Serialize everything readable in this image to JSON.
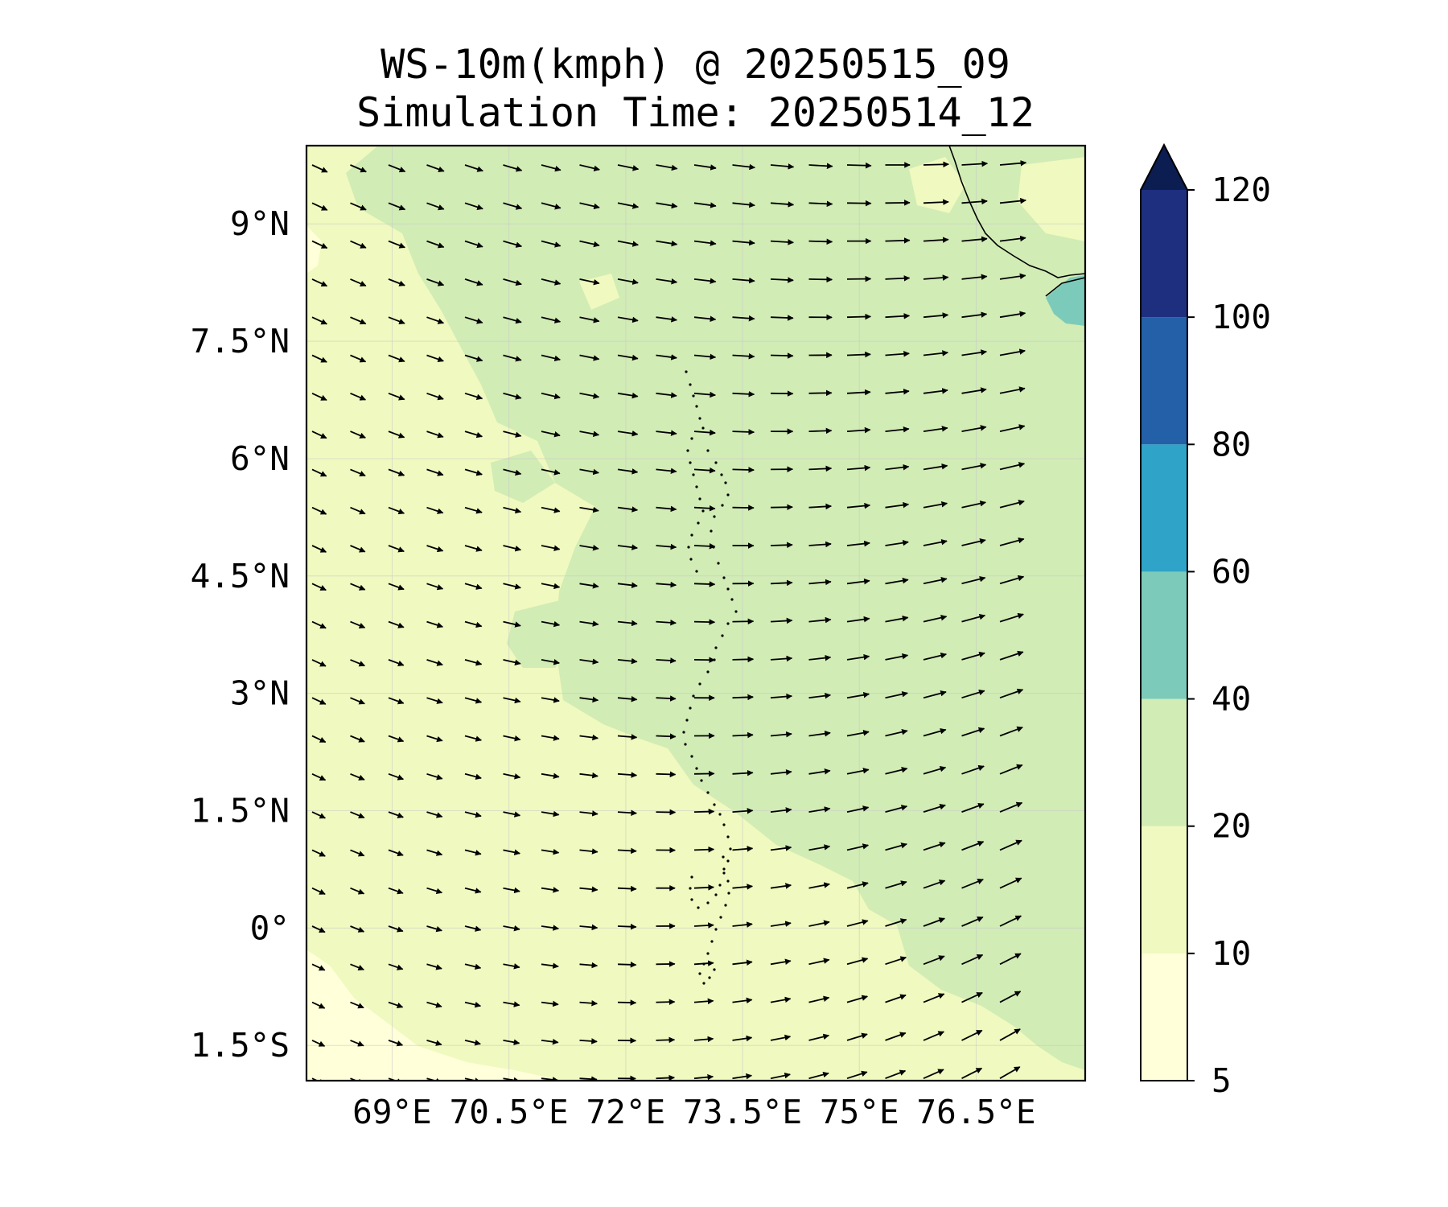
{
  "title": {
    "line1": "WS-10m(kmph) @ 20250515_09",
    "line2": "Simulation Time: 20250514_12"
  },
  "map": {
    "variable": "10 m wind speed",
    "units": "kmph",
    "lon_range": [
      67.9,
      77.9
    ],
    "lat_range": [
      -1.95,
      10.0
    ],
    "lat_ticks": [
      {
        "value": 9.0,
        "label": "9°N"
      },
      {
        "value": 7.5,
        "label": "7.5°N"
      },
      {
        "value": 6.0,
        "label": "6°N"
      },
      {
        "value": 4.5,
        "label": "4.5°N"
      },
      {
        "value": 3.0,
        "label": "3°N"
      },
      {
        "value": 1.5,
        "label": "1.5°N"
      },
      {
        "value": 0.0,
        "label": "0°"
      },
      {
        "value": -1.5,
        "label": "1.5°S"
      }
    ],
    "lon_ticks": [
      {
        "value": 69.0,
        "label": "69°E"
      },
      {
        "value": 70.5,
        "label": "70.5°E"
      },
      {
        "value": 72.0,
        "label": "72°E"
      },
      {
        "value": 73.5,
        "label": "73.5°E"
      },
      {
        "value": 75.0,
        "label": "75°E"
      },
      {
        "value": 76.5,
        "label": "76.5°E"
      }
    ],
    "gridlines": true,
    "field_colors": {
      "5-10": "#ffffd9",
      "10-20": "#f0f9bf",
      "20-40": "#d1ecb5",
      "40-60": "#7ccbba"
    }
  },
  "colorbar": {
    "levels": [
      5,
      10,
      20,
      40,
      60,
      80,
      100,
      120
    ],
    "tick_labels": [
      "5",
      "10",
      "20",
      "40",
      "60",
      "80",
      "100",
      "120"
    ],
    "colors": [
      "#ffffd9",
      "#f0f9bf",
      "#d1ecb5",
      "#7ccbba",
      "#2fa4c8",
      "#2360a8",
      "#1e2f7f"
    ],
    "extend": "max",
    "extend_color": "#0b1d51"
  }
}
